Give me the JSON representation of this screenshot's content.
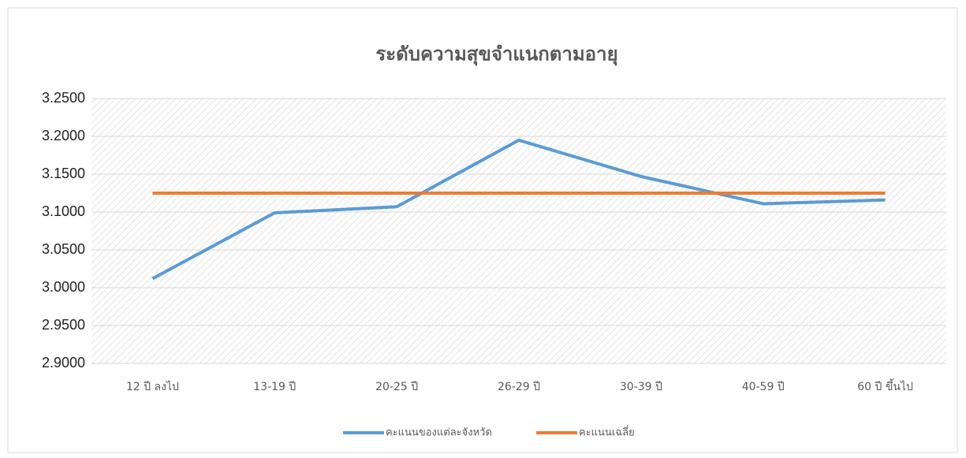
{
  "chart_data": {
    "type": "line",
    "title": "ระดับความสุขจำแนกตามอายุ",
    "categories": [
      "12 ปี ลงไป",
      "13-19 ปี",
      "20-25 ปี",
      "26-29 ปี",
      "30-39 ปี",
      "40-59 ปี",
      "60 ปี ขึ้นไป"
    ],
    "series": [
      {
        "name": "คะแนนของแต่ละจังหวัด",
        "color": "#5b9bd5",
        "values": [
          3.012,
          3.099,
          3.107,
          3.195,
          3.147,
          3.111,
          3.116
        ]
      },
      {
        "name": "คะแนนเฉลี่ย",
        "color": "#ed7d31",
        "values": [
          3.125,
          3.125,
          3.125,
          3.125,
          3.125,
          3.125,
          3.125
        ]
      }
    ],
    "ylim": [
      2.9,
      3.25
    ],
    "yticks": [
      {
        "value": 2.9,
        "label": "2.9000"
      },
      {
        "value": 2.95,
        "label": "2.9500"
      },
      {
        "value": 3.0,
        "label": "3.0000"
      },
      {
        "value": 3.05,
        "label": "3.0500"
      },
      {
        "value": 3.1,
        "label": "3.1000"
      },
      {
        "value": 3.15,
        "label": "3.1500"
      },
      {
        "value": 3.2,
        "label": "3.2000"
      },
      {
        "value": 3.25,
        "label": "3.2500"
      }
    ],
    "grid": true,
    "legend": "bottom"
  }
}
